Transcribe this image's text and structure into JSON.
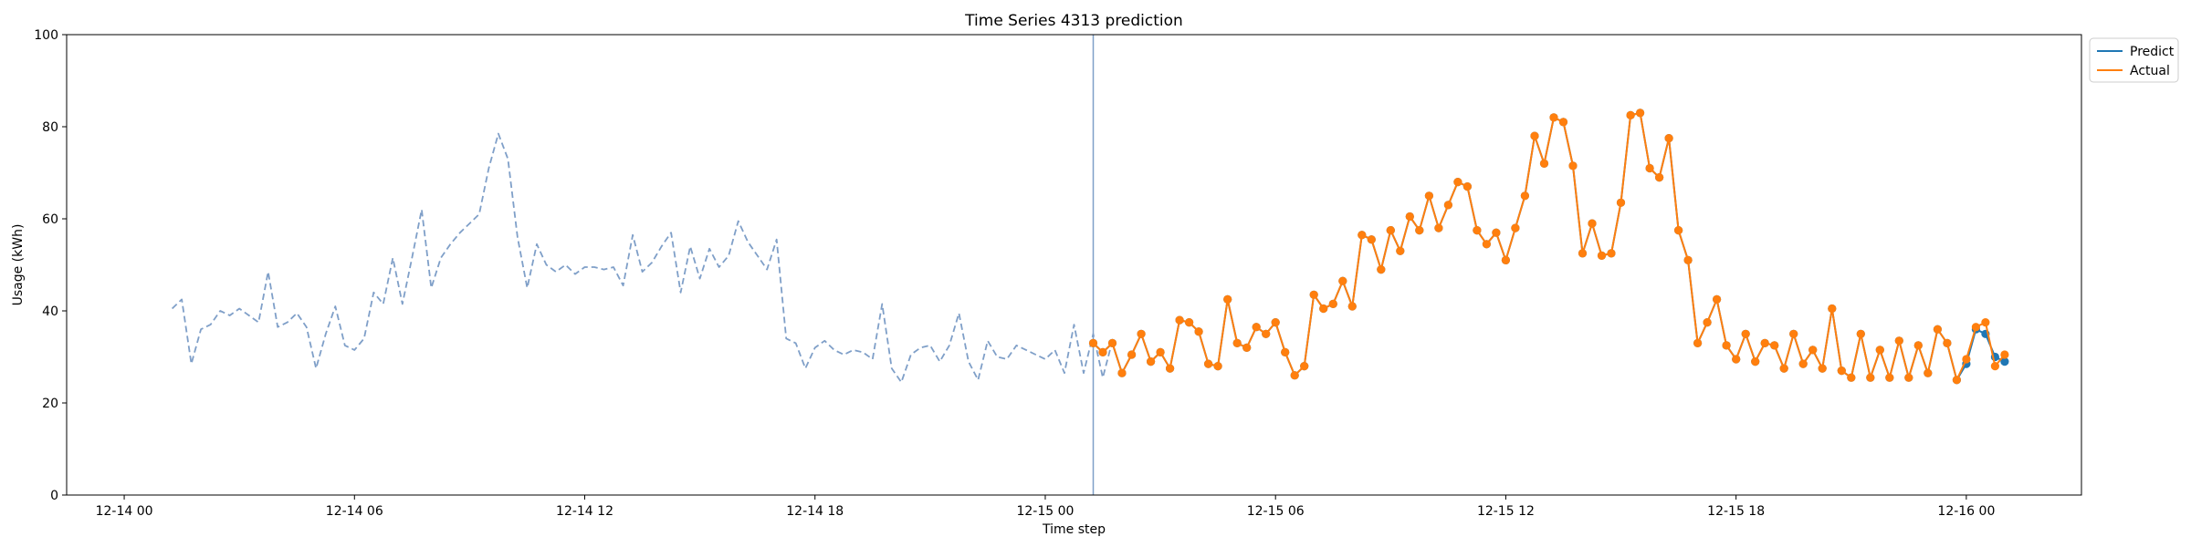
{
  "chart_data": {
    "type": "line",
    "title": "Time Series 4313 prediction",
    "xlabel": "Time step",
    "ylabel": "Usage (kWh)",
    "ylim": [
      0,
      100
    ],
    "yticks": [
      0,
      20,
      40,
      60,
      80,
      100
    ],
    "xlim_hours": [
      -1.5,
      51.0
    ],
    "xticks": [
      {
        "hour": 0,
        "label": "12-14 00"
      },
      {
        "hour": 6,
        "label": "12-14 06"
      },
      {
        "hour": 12,
        "label": "12-14 12"
      },
      {
        "hour": 18,
        "label": "12-14 18"
      },
      {
        "hour": 24,
        "label": "12-15 00"
      },
      {
        "hour": 30,
        "label": "12-15 06"
      },
      {
        "hour": 36,
        "label": "12-15 12"
      },
      {
        "hour": 42,
        "label": "12-15 18"
      },
      {
        "hour": 48,
        "label": "12-16 00"
      }
    ],
    "x_unit": "hours since 12-14 00:00",
    "split_hour": 25.25,
    "history": {
      "start_hour": 1.25,
      "step_hours": 0.25,
      "color": "#7f9fc8",
      "style": "dashed",
      "values": [
        40.5,
        42.5,
        28.5,
        36,
        37,
        40,
        39,
        40.5,
        39,
        37.5,
        48.5,
        36.5,
        37.5,
        39.5,
        36.5,
        27.5,
        35,
        41,
        32.5,
        31.5,
        34,
        44,
        41.5,
        51.5,
        41.5,
        51.5,
        62,
        45,
        51.5,
        54.5,
        57,
        59,
        61,
        71,
        78.5,
        73,
        56,
        45,
        54.5,
        50,
        48.5,
        50,
        48,
        49.5,
        49.5,
        49,
        49.5,
        45.5,
        56.5,
        48.5,
        50.5,
        54,
        57,
        44,
        54,
        47,
        53.5,
        49.5,
        52,
        59.5,
        55,
        52,
        49,
        55.5,
        34,
        33,
        27.5,
        32,
        33.5,
        31.5,
        30.5,
        31.5,
        31,
        29.5,
        41.5,
        27.5,
        24.5,
        30.5,
        32,
        32.5,
        29,
        32.5,
        39.5,
        29,
        25,
        33.5,
        30,
        29.5,
        32.5,
        31.5,
        30.5,
        29.5,
        31.5,
        26.5,
        37,
        26.5,
        35,
        25.5,
        33.5
      ]
    },
    "series": [
      {
        "name": "Predict",
        "color": "#1f77b4",
        "start_hour": 25.25,
        "step_hours": 0.25,
        "values": [
          33,
          31,
          33,
          26.5,
          30.5,
          35,
          29,
          31,
          27.5,
          38,
          37.5,
          35.5,
          28.5,
          28,
          42.5,
          33,
          32,
          36.5,
          35,
          37.5,
          31,
          26,
          28,
          43.5,
          40.5,
          41.5,
          46.5,
          41,
          56.5,
          55.5,
          49,
          57.5,
          53,
          60.5,
          57.5,
          65,
          58,
          63,
          68,
          67,
          57.5,
          54.5,
          57,
          51,
          58,
          65,
          78,
          72,
          82,
          81,
          71.5,
          52.5,
          59,
          52,
          52.5,
          63.5,
          82.5,
          83,
          71,
          69,
          77.5,
          57.5,
          51,
          33,
          37.5,
          42.5,
          32.5,
          29.5,
          35,
          29,
          33,
          32.5,
          27.5,
          35,
          28.5,
          31.5,
          27.5,
          40.5,
          27,
          25.5,
          35,
          25.5,
          31.5,
          25.5,
          33.5,
          25.5,
          32.5,
          26.5,
          36,
          33,
          25,
          28.5,
          36,
          35,
          30,
          29
        ]
      },
      {
        "name": "Actual",
        "color": "#ff7f0e",
        "start_hour": 25.25,
        "step_hours": 0.25,
        "values": [
          33,
          31,
          33,
          26.5,
          30.5,
          35,
          29,
          31,
          27.5,
          38,
          37.5,
          35.5,
          28.5,
          28,
          42.5,
          33,
          32,
          36.5,
          35,
          37.5,
          31,
          26,
          28,
          43.5,
          40.5,
          41.5,
          46.5,
          41,
          56.5,
          55.5,
          49,
          57.5,
          53,
          60.5,
          57.5,
          65,
          58,
          63,
          68,
          67,
          57.5,
          54.5,
          57,
          51,
          58,
          65,
          78,
          72,
          82,
          81,
          71.5,
          52.5,
          59,
          52,
          52.5,
          63.5,
          82.5,
          83,
          71,
          69,
          77.5,
          57.5,
          51,
          33,
          37.5,
          42.5,
          32.5,
          29.5,
          35,
          29,
          33,
          32.5,
          27.5,
          35,
          28.5,
          31.5,
          27.5,
          40.5,
          27,
          25.5,
          35,
          25.5,
          31.5,
          25.5,
          33.5,
          25.5,
          32.5,
          26.5,
          36,
          33,
          25,
          29.5,
          36.5,
          37.5,
          28,
          30.5
        ]
      }
    ],
    "legend": {
      "position": "outside-top-right",
      "entries": [
        "Predict",
        "Actual"
      ]
    },
    "grid": false
  }
}
